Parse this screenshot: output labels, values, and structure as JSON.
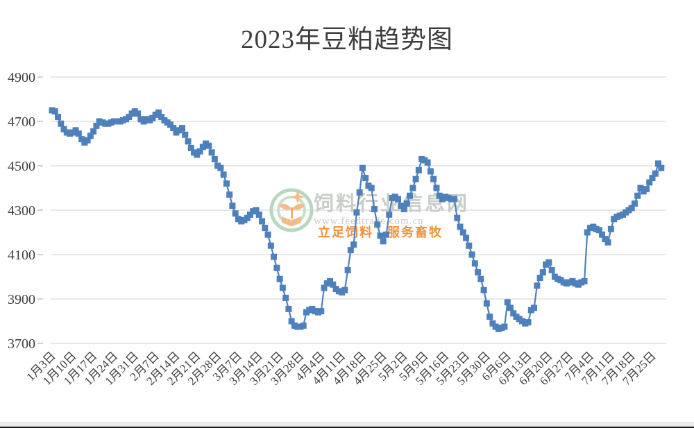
{
  "title": "2023年豆粕趋势图",
  "watermark": {
    "logo": "feedtrade-logo",
    "site_name": "饲料行业信息网",
    "url": "www.feedtrade.com.cn",
    "slogan": "立足饲料　服务畜牧"
  },
  "colors": {
    "series": "#4E80BC",
    "gridline": "#D9D9D9",
    "tick_mark": "#BFBFBF",
    "axis_label": "#404040",
    "title_text": "#3D3D3D",
    "watermark_gray": "#C9CDC9",
    "watermark_orange": "#F0923E",
    "watermark_green": "#B7D8BF",
    "watermark_leaf": "#F5BC8A",
    "window_band": "#EDEDED",
    "window_band_border": "#D9D9D9",
    "window_bottom_line": "#1A1A1A"
  },
  "chart_data": {
    "type": "line",
    "title": "2023年豆粕趋势图",
    "marker": "square",
    "legend": "none",
    "grid": "horizontal",
    "ylim": [
      3700,
      4900
    ],
    "y_ticks": [
      3700,
      3900,
      4100,
      4300,
      4500,
      4700,
      4900
    ],
    "x_unit": "day",
    "points_per_tick": 7,
    "x_tick_labels": [
      "1月3日",
      "1月10日",
      "1月17日",
      "1月24日",
      "1月31日",
      "2月7日",
      "2月14日",
      "2月21日",
      "2月28日",
      "3月7日",
      "3月14日",
      "3月21日",
      "3月28日",
      "4月4日",
      "4月11日",
      "4月18日",
      "4月25日",
      "5月2日",
      "5月9日",
      "5月16日",
      "5月23日",
      "5月30日",
      "6月6日",
      "6月13日",
      "6月20日",
      "6月27日",
      "7月4日",
      "7月11日",
      "7月18日",
      "7月25日"
    ],
    "values": [
      4750,
      4745,
      4720,
      4690,
      4665,
      4650,
      4645,
      4650,
      4660,
      4645,
      4620,
      4605,
      4615,
      4635,
      4655,
      4680,
      4700,
      4695,
      4690,
      4690,
      4695,
      4700,
      4700,
      4700,
      4705,
      4710,
      4720,
      4735,
      4745,
      4735,
      4710,
      4700,
      4710,
      4705,
      4715,
      4730,
      4740,
      4720,
      4705,
      4695,
      4685,
      4670,
      4650,
      4660,
      4670,
      4640,
      4610,
      4580,
      4560,
      4550,
      4565,
      4585,
      4600,
      4590,
      4560,
      4530,
      4500,
      4490,
      4460,
      4420,
      4370,
      4320,
      4285,
      4260,
      4250,
      4255,
      4265,
      4280,
      4295,
      4300,
      4280,
      4250,
      4220,
      4190,
      4140,
      4090,
      4040,
      3990,
      3950,
      3905,
      3855,
      3800,
      3780,
      3775,
      3775,
      3780,
      3840,
      3850,
      3855,
      3845,
      3840,
      3845,
      3950,
      3970,
      3980,
      3965,
      3945,
      3935,
      3930,
      3940,
      4030,
      4120,
      4145,
      4290,
      4380,
      4490,
      4445,
      4410,
      4400,
      4305,
      4235,
      4185,
      4160,
      4190,
      4280,
      4355,
      4360,
      4350,
      4320,
      4305,
      4330,
      4365,
      4400,
      4440,
      4480,
      4530,
      4525,
      4515,
      4475,
      4440,
      4400,
      4365,
      4350,
      4360,
      4355,
      4350,
      4350,
      4265,
      4225,
      4200,
      4175,
      4140,
      4100,
      4060,
      4020,
      3990,
      3940,
      3880,
      3820,
      3790,
      3775,
      3765,
      3770,
      3775,
      3885,
      3860,
      3835,
      3820,
      3810,
      3800,
      3790,
      3795,
      3850,
      3860,
      3960,
      3995,
      4020,
      4055,
      4065,
      4030,
      4000,
      3990,
      3985,
      3975,
      3970,
      3975,
      3980,
      3970,
      3965,
      3975,
      3980,
      4200,
      4220,
      4225,
      4215,
      4210,
      4190,
      4170,
      4155,
      4215,
      4260,
      4270,
      4275,
      4280,
      4290,
      4300,
      4310,
      4330,
      4365,
      4400,
      4385,
      4395,
      4425,
      4445,
      4465,
      4510,
      4490
    ]
  }
}
